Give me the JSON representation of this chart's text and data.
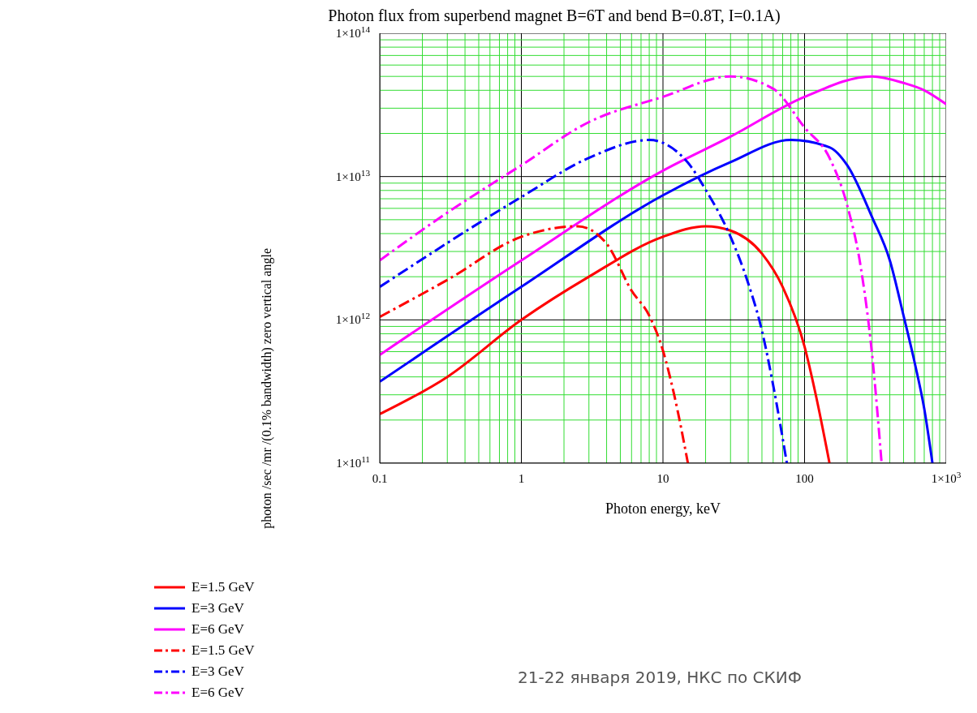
{
  "chart_data": {
    "type": "line",
    "title": "Photon flux from superbend magnet B=6T and bend B=0.8T, I=0.1A)",
    "xlabel": "Photon energy, keV",
    "ylabel": "photon /sec /mr /(0.1% bandwidth) zero vertical angle",
    "log": "xy",
    "grid": true,
    "legend": "bottom left",
    "marker": "none",
    "xlim": [
      0.1,
      1000
    ],
    "ylim": [
      100000000000,
      100000000000000
    ],
    "xticks": [
      0.1,
      {
        "value": 0.2,
        "label": null
      },
      {
        "value": 0.3,
        "label": null
      },
      {
        "value": 0.4,
        "label": null
      },
      {
        "value": 0.5,
        "label": null
      },
      {
        "value": 0.6,
        "label": null
      },
      {
        "value": 0.7,
        "label": null
      },
      {
        "value": 0.8,
        "label": null
      },
      {
        "value": 0.9,
        "label": null
      },
      1,
      {
        "value": 2,
        "label": null
      },
      {
        "value": 3,
        "label": null
      },
      {
        "value": 4,
        "label": null
      },
      {
        "value": 5,
        "label": null
      },
      {
        "value": 6,
        "label": null
      },
      {
        "value": 7,
        "label": null
      },
      {
        "value": 8,
        "label": null
      },
      {
        "value": 9,
        "label": null
      },
      10,
      {
        "value": 20,
        "label": null
      },
      {
        "value": 30,
        "label": null
      },
      {
        "value": 40,
        "label": null
      },
      {
        "value": 50,
        "label": null
      },
      {
        "value": 60,
        "label": null
      },
      {
        "value": 70,
        "label": null
      },
      {
        "value": 80,
        "label": null
      },
      {
        "value": 90,
        "label": null
      },
      100,
      {
        "value": 200,
        "label": null
      },
      {
        "value": 300,
        "label": null
      },
      {
        "value": 400,
        "label": null
      },
      {
        "value": 500,
        "label": null
      },
      {
        "value": 600,
        "label": null
      },
      {
        "value": 700,
        "label": null
      },
      {
        "value": 800,
        "label": null
      },
      {
        "value": 900,
        "label": null
      },
      {
        "value": 1000,
        "label": "1×10$^{3}$"
      }
    ],
    "yticks": [
      {
        "value": 100000000000,
        "label": "1×10$^{11}$"
      },
      {
        "value": 200000000000,
        "label": null
      },
      {
        "value": 300000000000,
        "label": null
      },
      {
        "value": 400000000000,
        "label": null
      },
      {
        "value": 500000000000,
        "label": null
      },
      {
        "value": 600000000000,
        "label": null
      },
      {
        "value": 700000000000,
        "label": null
      },
      {
        "value": 800000000000,
        "label": null
      },
      {
        "value": 900000000000,
        "label": null
      },
      {
        "value": 1000000000000,
        "label": "1×10$^{12}$"
      },
      {
        "value": 2000000000000,
        "label": null
      },
      {
        "value": 3000000000000,
        "label": null
      },
      {
        "value": 4000000000000,
        "label": null
      },
      {
        "value": 5000000000000,
        "label": null
      },
      {
        "value": 6000000000000,
        "label": null
      },
      {
        "value": 7000000000000,
        "label": null
      },
      {
        "value": 8000000000000,
        "label": null
      },
      {
        "value": 9000000000000,
        "label": null
      },
      {
        "value": 10000000000000,
        "label": "1×10$^{13}$"
      },
      {
        "value": 20000000000000,
        "label": null
      },
      {
        "value": 30000000000000,
        "label": null
      },
      {
        "value": 40000000000000,
        "label": null
      },
      {
        "value": 50000000000000,
        "label": null
      },
      {
        "value": 60000000000000,
        "label": null
      },
      {
        "value": 70000000000000,
        "label": null
      },
      {
        "value": 80000000000000,
        "label": null
      },
      {
        "value": 90000000000000,
        "label": null
      },
      {
        "value": 100000000000000,
        "label": "1×10$^{14}$"
      }
    ],
    "series": [
      {
        "name": "E=1.5 GeV",
        "color": "#ff0000",
        "line_style": "solid",
        "x": [
          0.1,
          0.3,
          1,
          3,
          10,
          20,
          30,
          50,
          70,
          100,
          120,
          150
        ],
        "values": [
          220000000000,
          400000000000,
          1000000000000,
          2000000000000,
          3800000000000,
          4500000000000,
          4200000000000,
          2900000000000,
          1700000000000,
          650000000000,
          300000000000,
          100000000000
        ]
      },
      {
        "name": "E=3 GeV",
        "color": "#0000ff",
        "line_style": "solid",
        "x": [
          0.1,
          1,
          10,
          30,
          80,
          150,
          200,
          300,
          400,
          500,
          600,
          700,
          800
        ],
        "values": [
          370000000000,
          1700000000000,
          7400000000000,
          12600000000000,
          18000000000000,
          16000000000000,
          12000000000000,
          5200000000000,
          2600000000000,
          1070000000000,
          500000000000,
          240000000000,
          100000000000
        ]
      },
      {
        "name": "E=6 GeV",
        "color": "#ff00ff",
        "line_style": "solid",
        "x": [
          0.1,
          1,
          10,
          30,
          100,
          300,
          500,
          700,
          1000
        ],
        "values": [
          570000000000,
          2600000000000,
          11000000000000,
          19000000000000,
          36000000000000,
          50000000000000,
          45000000000000,
          40000000000000,
          32000000000000
        ]
      },
      {
        "name": "E=1.5 GeV",
        "color": "#ff0000",
        "line_style": "dashed",
        "x": [
          0.1,
          0.3,
          1,
          2.5,
          4,
          6,
          8,
          10,
          12,
          15
        ],
        "values": [
          1050000000000,
          1900000000000,
          3800000000000,
          4500000000000,
          3400000000000,
          1600000000000,
          1070000000000,
          610000000000,
          300000000000,
          100000000000
        ]
      },
      {
        "name": "E=3 GeV",
        "color": "#0000ff",
        "line_style": "dashed",
        "x": [
          0.1,
          1,
          3,
          8,
          15,
          20,
          30,
          40,
          50,
          60,
          75
        ],
        "values": [
          1700000000000,
          7200000000000,
          13500000000000,
          18000000000000,
          12500000000000,
          8100000000000,
          3800000000000,
          1800000000000,
          840000000000,
          350000000000,
          100000000000
        ]
      },
      {
        "name": "E=6 GeV",
        "color": "#ff00ff",
        "line_style": "dashed",
        "x": [
          0.1,
          0.3,
          1,
          3,
          10,
          30,
          60,
          100,
          150,
          200,
          250,
          300,
          350
        ],
        "values": [
          2600000000000,
          5600000000000,
          12000000000000,
          24000000000000,
          36000000000000,
          50000000000000,
          41000000000000,
          22000000000000,
          13500000000000,
          6300000000000,
          2300000000000,
          570000000000,
          100000000000
        ]
      }
    ],
    "annotations": [
      "21-22 января 2019, НКС по СКИФ"
    ]
  }
}
